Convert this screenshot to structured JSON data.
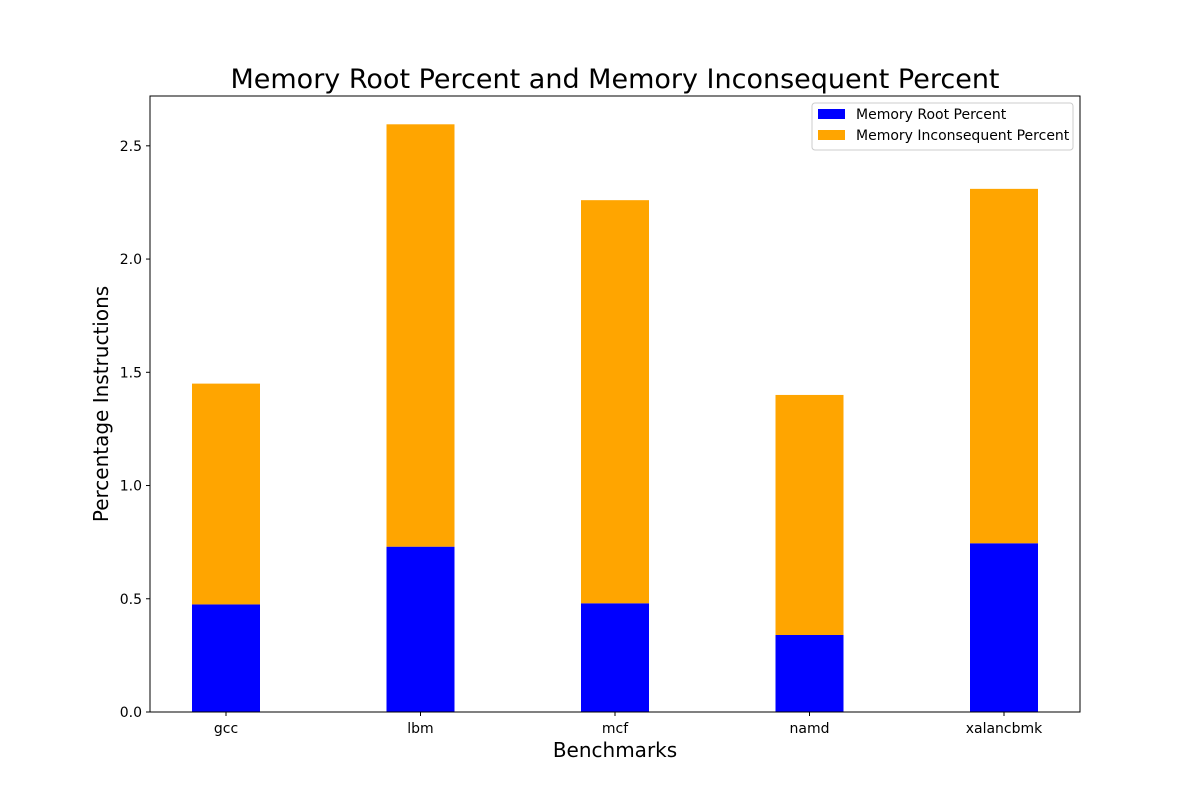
{
  "chart_data": {
    "type": "bar",
    "stacked": true,
    "title": "Memory Root Percent and Memory Inconsequent Percent",
    "xlabel": "Benchmarks",
    "ylabel": "Percentage Instructions",
    "categories": [
      "gcc",
      "lbm",
      "mcf",
      "namd",
      "xalancbmk"
    ],
    "series": [
      {
        "name": "Memory Root Percent",
        "color": "#0000ff",
        "values": [
          0.475,
          0.73,
          0.48,
          0.34,
          0.745
        ]
      },
      {
        "name": "Memory Inconsequent Percent",
        "color": "#ffa500",
        "values": [
          0.975,
          1.865,
          1.78,
          1.06,
          1.565
        ]
      }
    ],
    "ylim": [
      0,
      2.72
    ],
    "yticks": [
      0.0,
      0.5,
      1.0,
      1.5,
      2.0,
      2.5
    ],
    "ytick_labels": [
      "0.0",
      "0.5",
      "1.0",
      "1.5",
      "2.0",
      "2.5"
    ],
    "legend_position": "top-right",
    "grid": false
  }
}
